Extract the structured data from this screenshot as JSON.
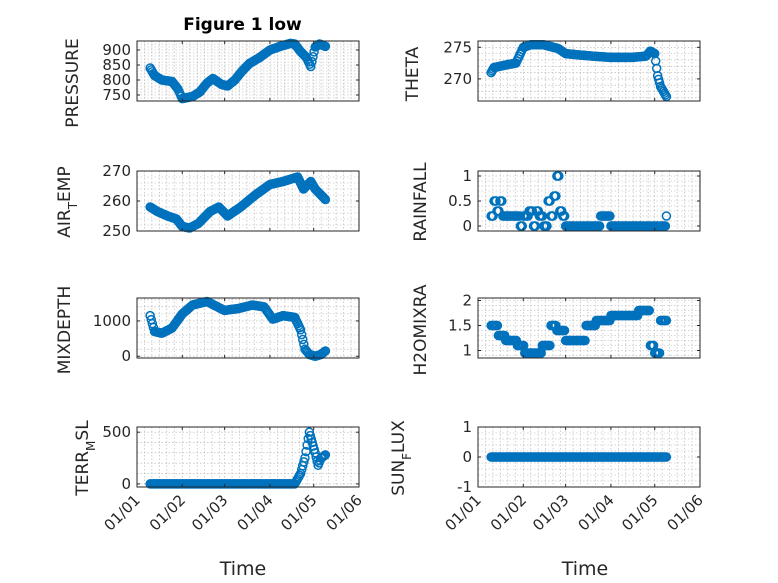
{
  "figure": {
    "title": "Figure 1 low",
    "marker_color": "#0072BD",
    "grid": true,
    "x_tick_labels": [
      "01/01",
      "01/02",
      "01/03",
      "01/04",
      "01/05",
      "01/06"
    ]
  },
  "chart_data": [
    {
      "type": "scatter",
      "title": "Figure 1 low",
      "ylabel": "PRESSURE",
      "xlabel": "",
      "xlim": [
        "2020-01-01",
        "2020-06-01"
      ],
      "ylim": [
        730,
        930
      ],
      "yticks": [
        750,
        800,
        850,
        900
      ],
      "keypoints": {
        "x": [
          "2020-01-10",
          "2020-01-13",
          "2020-01-18",
          "2020-01-25",
          "2020-01-29",
          "2020-02-01",
          "2020-02-03",
          "2020-02-08",
          "2020-02-13",
          "2020-02-18",
          "2020-02-22",
          "2020-02-28",
          "2020-03-03",
          "2020-03-08",
          "2020-03-13",
          "2020-03-18",
          "2020-03-25",
          "2020-04-01",
          "2020-04-08",
          "2020-04-15",
          "2020-04-18",
          "2020-04-22",
          "2020-04-26",
          "2020-04-29",
          "2020-05-02",
          "2020-05-05",
          "2020-05-09"
        ],
        "y": [
          840,
          815,
          800,
          795,
          770,
          738,
          740,
          745,
          760,
          790,
          805,
          785,
          780,
          800,
          830,
          855,
          875,
          900,
          912,
          922,
          920,
          895,
          875,
          845,
          910,
          920,
          912
        ]
      }
    },
    {
      "type": "scatter",
      "ylabel": "THETA",
      "xlabel": "",
      "xlim": [
        "2020-01-01",
        "2020-06-01"
      ],
      "ylim": [
        266.5,
        276
      ],
      "yticks": [
        270,
        275
      ],
      "keypoints": {
        "x": [
          "2020-01-10",
          "2020-01-12",
          "2020-01-20",
          "2020-01-27",
          "2020-02-01",
          "2020-02-06",
          "2020-02-15",
          "2020-02-25",
          "2020-03-01",
          "2020-03-10",
          "2020-03-20",
          "2020-04-01",
          "2020-04-15",
          "2020-04-25",
          "2020-04-28",
          "2020-05-01",
          "2020-05-03",
          "2020-05-05",
          "2020-05-09"
        ],
        "y": [
          271,
          271.8,
          272.2,
          272.5,
          275,
          275.4,
          275.4,
          274.8,
          274,
          273.8,
          273.6,
          273.4,
          273.4,
          273.6,
          274.4,
          274,
          270.5,
          268.8,
          267.2
        ]
      }
    },
    {
      "type": "scatter",
      "ylabel": "AIR_TEMP",
      "xlabel": "",
      "xlim": [
        "2020-01-01",
        "2020-06-01"
      ],
      "ylim": [
        250,
        270
      ],
      "yticks": [
        250,
        260,
        270
      ],
      "keypoints": {
        "x": [
          "2020-01-10",
          "2020-01-15",
          "2020-01-22",
          "2020-01-28",
          "2020-02-01",
          "2020-02-06",
          "2020-02-12",
          "2020-02-20",
          "2020-02-26",
          "2020-03-03",
          "2020-03-12",
          "2020-03-22",
          "2020-04-01",
          "2020-04-10",
          "2020-04-20",
          "2020-04-24",
          "2020-04-29",
          "2020-05-02",
          "2020-05-09"
        ],
        "y": [
          258,
          256.5,
          255,
          254,
          251.5,
          251,
          252.5,
          256.5,
          258,
          255,
          258,
          262,
          265.5,
          266.5,
          268,
          264,
          266.5,
          264,
          260.5
        ]
      }
    },
    {
      "type": "scatter",
      "ylabel": "RAINFALL",
      "xlabel": "",
      "xlim": [
        "2020-01-01",
        "2020-06-01"
      ],
      "ylim": [
        -0.1,
        1.1
      ],
      "yticks": [
        0,
        0.5,
        1
      ],
      "keypoints": {
        "x": [
          "2020-01-10",
          "2020-01-12",
          "2020-01-14",
          "2020-01-16",
          "2020-01-18",
          "2020-01-22",
          "2020-01-26",
          "2020-01-30",
          "2020-02-01",
          "2020-02-05",
          "2020-02-08",
          "2020-02-10",
          "2020-02-12",
          "2020-02-15",
          "2020-02-18",
          "2020-02-20",
          "2020-02-22",
          "2020-02-24",
          "2020-02-26",
          "2020-02-28",
          "2020-03-01",
          "2020-03-10",
          "2020-03-25",
          "2020-04-01",
          "2020-04-15",
          "2020-05-01",
          "2020-05-09"
        ],
        "y": [
          0.2,
          0.5,
          0.3,
          0.5,
          0.2,
          0.2,
          0.2,
          0,
          0.2,
          0.3,
          0,
          0.3,
          0.2,
          0,
          0.5,
          0.2,
          0.6,
          1,
          0.3,
          0.2,
          0,
          0,
          0.2,
          0,
          0,
          0,
          0.2
        ]
      }
    },
    {
      "type": "scatter",
      "ylabel": "MIXDEPTH",
      "xlabel": "",
      "xlim": [
        "2020-01-01",
        "2020-06-01"
      ],
      "ylim": [
        -50,
        1650
      ],
      "yticks": [
        0,
        1000
      ],
      "keypoints": {
        "x": [
          "2020-01-10",
          "2020-01-13",
          "2020-01-18",
          "2020-01-25",
          "2020-02-01",
          "2020-02-08",
          "2020-02-18",
          "2020-02-25",
          "2020-03-01",
          "2020-03-10",
          "2020-03-20",
          "2020-03-28",
          "2020-04-03",
          "2020-04-10",
          "2020-04-18",
          "2020-04-22",
          "2020-04-25",
          "2020-04-28",
          "2020-05-02",
          "2020-05-06",
          "2020-05-09"
        ],
        "y": [
          1150,
          700,
          650,
          800,
          1200,
          1450,
          1550,
          1400,
          1300,
          1350,
          1450,
          1400,
          1050,
          1150,
          1100,
          750,
          200,
          50,
          0,
          50,
          150
        ]
      }
    },
    {
      "type": "scatter",
      "ylabel": "H2OMIXRA",
      "xlabel": "",
      "xlim": [
        "2020-01-01",
        "2020-06-01"
      ],
      "ylim": [
        0.85,
        2.05
      ],
      "yticks": [
        1,
        1.5,
        2
      ],
      "keypoints": {
        "x": [
          "2020-01-10",
          "2020-01-15",
          "2020-01-20",
          "2020-01-28",
          "2020-02-02",
          "2020-02-08",
          "2020-02-14",
          "2020-02-20",
          "2020-02-24",
          "2020-03-01",
          "2020-03-10",
          "2020-03-15",
          "2020-03-22",
          "2020-04-01",
          "2020-04-20",
          "2020-04-25",
          "2020-04-28",
          "2020-05-01",
          "2020-05-05",
          "2020-05-09"
        ],
        "y": [
          1.5,
          1.3,
          1.2,
          1.1,
          0.95,
          0.95,
          1.1,
          1.5,
          1.4,
          1.2,
          1.2,
          1.5,
          1.6,
          1.7,
          1.8,
          1.8,
          1.1,
          0.95,
          1.6,
          1.6
        ]
      }
    },
    {
      "type": "scatter",
      "ylabel": "TERR_MSL",
      "xlabel": "Time",
      "xlim": [
        "2020-01-01",
        "2020-06-01"
      ],
      "ylim": [
        -30,
        550
      ],
      "yticks": [
        0,
        500
      ],
      "keypoints": {
        "x": [
          "2020-01-10",
          "2020-02-01",
          "2020-03-01",
          "2020-04-01",
          "2020-04-18",
          "2020-04-22",
          "2020-04-25",
          "2020-04-28",
          "2020-04-30",
          "2020-05-02",
          "2020-05-04",
          "2020-05-06",
          "2020-05-09"
        ],
        "y": [
          0,
          0,
          0,
          0,
          0,
          100,
          250,
          500,
          400,
          300,
          180,
          250,
          280
        ]
      }
    },
    {
      "type": "scatter",
      "ylabel": "SUN_FLUX",
      "xlabel": "Time",
      "xlim": [
        "2020-01-01",
        "2020-06-01"
      ],
      "ylim": [
        -1,
        1
      ],
      "yticks": [
        -1,
        0,
        1
      ],
      "keypoints": {
        "x": [
          "2020-01-10",
          "2020-05-09"
        ],
        "y": [
          0,
          0
        ]
      }
    }
  ]
}
